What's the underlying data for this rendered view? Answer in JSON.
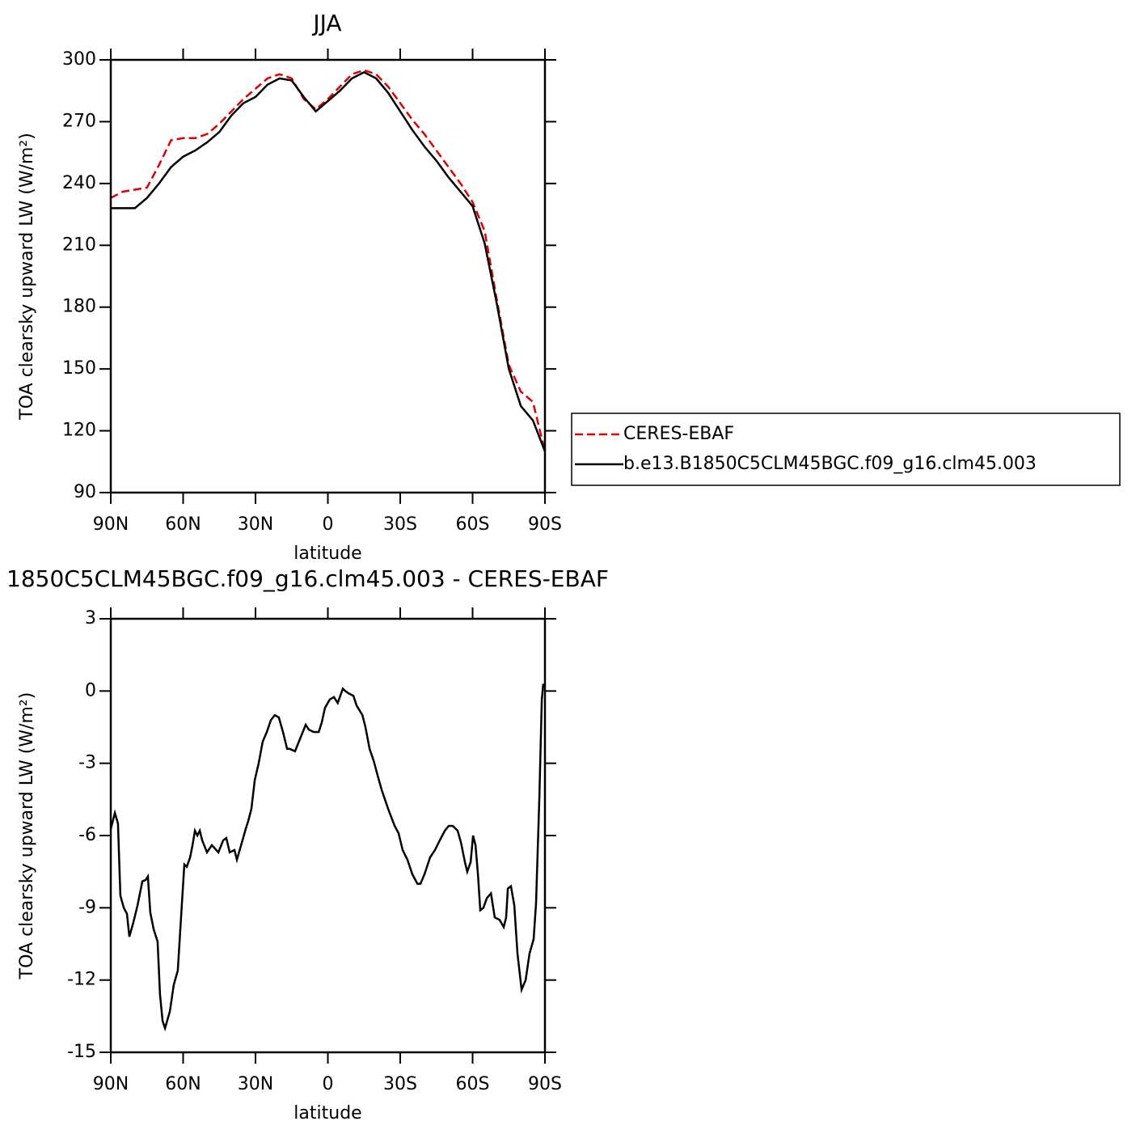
{
  "chart_data": [
    {
      "type": "line",
      "title": "JJA",
      "xlabel": "latitude",
      "ylabel": "TOA clearsky upward LW (W/m²)",
      "x": [
        90,
        85,
        80,
        75,
        70,
        65,
        60,
        55,
        50,
        45,
        40,
        35,
        30,
        25,
        20,
        15,
        10,
        5,
        0,
        -5,
        -10,
        -15,
        -20,
        -25,
        -30,
        -35,
        -40,
        -45,
        -50,
        -55,
        -60,
        -65,
        -70,
        -75,
        -80,
        -85,
        -90
      ],
      "series": [
        {
          "name": "CERES-EBAF",
          "color": "#e00000",
          "line_style": "dashed",
          "values": [
            233,
            236,
            237,
            238,
            249,
            261,
            262,
            262,
            264,
            269,
            275,
            281,
            286,
            291,
            293,
            291,
            281,
            276,
            281,
            287,
            293,
            295,
            293,
            287,
            279,
            271,
            264,
            256,
            248,
            240,
            231,
            217,
            184,
            152,
            139,
            134,
            110
          ]
        },
        {
          "name": "b.e13.B1850C5CLM45BGC.f09_g16.clm45.003",
          "color": "#000000",
          "line_style": "solid",
          "values": [
            228,
            228,
            228,
            233,
            240,
            248,
            253,
            256,
            260,
            265,
            273,
            279,
            282,
            288,
            291,
            290,
            282,
            275,
            280,
            285,
            291,
            294,
            291,
            284,
            275,
            266,
            258,
            251,
            243,
            236,
            229,
            211,
            182,
            150,
            132,
            125,
            110
          ]
        }
      ],
      "xlim": [
        90,
        -90
      ],
      "xticks": [
        {
          "value": 90,
          "label": "90N"
        },
        {
          "value": 60,
          "label": "60N"
        },
        {
          "value": 30,
          "label": "30N"
        },
        0,
        {
          "value": -30,
          "label": "30S"
        },
        {
          "value": -60,
          "label": "60S"
        },
        {
          "value": -90,
          "label": "90S"
        }
      ],
      "ylim": [
        90,
        300
      ],
      "yticks": [
        90,
        120,
        150,
        180,
        210,
        240,
        270,
        300
      ],
      "legend": "right"
    },
    {
      "type": "line",
      "title": "1850C5CLM45BGC.f09_g16.clm45.003 - CERES-EBAF",
      "xlabel": "latitude",
      "ylabel": "TOA clearsky upward LW (W/m²)",
      "x": [
        90,
        88.3,
        87,
        86,
        84.6,
        83.3,
        82.3,
        80.6,
        78.9,
        76.9,
        75.6,
        74.6,
        73.6,
        72.2,
        70.6,
        69.6,
        68.5,
        67.5,
        65.5,
        63.9,
        62.2,
        60.8,
        59.5,
        58.5,
        57.1,
        56.1,
        55.1,
        54.1,
        53.1,
        52.1,
        50.1,
        48.1,
        45.4,
        43.4,
        42.1,
        40.7,
        38.7,
        37.7,
        35.4,
        34,
        33,
        31.7,
        30.3,
        28.7,
        27,
        25.3,
        23.6,
        22,
        20.3,
        18.6,
        16.9,
        15.9,
        13.6,
        11.2,
        9.2,
        7.9,
        5.9,
        3.8,
        2.5,
        1.2,
        -0.8,
        -2.5,
        -4.1,
        -6.2,
        -7.2,
        -8.6,
        -10.6,
        -11.9,
        -14.3,
        -15.6,
        -17.3,
        -19,
        -20.6,
        -22.3,
        -25,
        -27.7,
        -29.3,
        -31,
        -33,
        -35,
        -37.1,
        -38.4,
        -40.1,
        -42.4,
        -44.4,
        -46.4,
        -48.5,
        -50.1,
        -51.8,
        -53.8,
        -55.2,
        -56.8,
        -57.8,
        -59.2,
        -60.2,
        -61.2,
        -62.2,
        -63.2,
        -64.5,
        -65.9,
        -67.6,
        -69.2,
        -71.2,
        -72.9,
        -73.9,
        -74.6,
        -75.9,
        -77.3,
        -78.6,
        -80.3,
        -82,
        -83.6,
        -85.3,
        -86.3,
        -87.7,
        -88.7,
        -89.3
      ],
      "values": [
        -5.73,
        -5.06,
        -5.5,
        -8.5,
        -9,
        -9.25,
        -10.2,
        -9.6,
        -8.9,
        -7.9,
        -7.85,
        -7.7,
        -9.2,
        -9.9,
        -10.4,
        -12.6,
        -13.7,
        -14,
        -13.3,
        -12.2,
        -11.6,
        -9.3,
        -7.2,
        -7.3,
        -6.9,
        -6.4,
        -5.8,
        -6,
        -5.8,
        -6.2,
        -6.7,
        -6.4,
        -6.7,
        -6.2,
        -6.1,
        -6.7,
        -6.6,
        -7,
        -6.2,
        -5.7,
        -5.4,
        -4.9,
        -3.7,
        -3,
        -2.1,
        -1.7,
        -1.2,
        -1,
        -1.1,
        -1.7,
        -2.4,
        -2.4,
        -2.5,
        -1.9,
        -1.4,
        -1.6,
        -1.7,
        -1.7,
        -1.3,
        -0.7,
        -0.35,
        -0.25,
        -0.5,
        0.1,
        0,
        -0.1,
        -0.2,
        -0.6,
        -1,
        -1.5,
        -2.4,
        -2.9,
        -3.5,
        -4.1,
        -4.9,
        -5.6,
        -5.9,
        -6.6,
        -7,
        -7.6,
        -8,
        -8,
        -7.6,
        -6.9,
        -6.6,
        -6.2,
        -5.8,
        -5.6,
        -5.6,
        -5.8,
        -6.3,
        -7.1,
        -7.5,
        -7.1,
        -6,
        -6.4,
        -7.6,
        -9.1,
        -9,
        -8.6,
        -8.4,
        -9.4,
        -9.5,
        -9.8,
        -9.4,
        -8.2,
        -8.1,
        -8.9,
        -10.9,
        -12.4,
        -12,
        -10.9,
        -10.3,
        -8.8,
        -4.4,
        -0.35,
        0.3
      ],
      "color": "#000000",
      "line_style": "solid",
      "xlim": [
        90,
        -90
      ],
      "xticks": [
        {
          "value": 90,
          "label": "90N"
        },
        {
          "value": 60,
          "label": "60N"
        },
        {
          "value": 30,
          "label": "30N"
        },
        0,
        {
          "value": -30,
          "label": "30S"
        },
        {
          "value": -60,
          "label": "60S"
        },
        {
          "value": -90,
          "label": "90S"
        }
      ],
      "ylim": [
        -15,
        3
      ],
      "yticks": [
        -15,
        -12,
        -9,
        -6,
        -3,
        0,
        3
      ]
    }
  ]
}
